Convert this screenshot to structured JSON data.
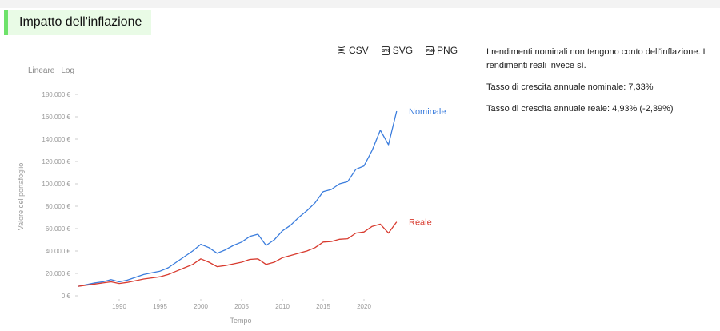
{
  "header": {
    "title": "Impatto dell'inflazione"
  },
  "exports": {
    "csv": "CSV",
    "svg": "SVG",
    "png": "PNG",
    "svg_icon": "SVG",
    "png_icon": "PNG"
  },
  "scale": {
    "linear": "Lineare",
    "log": "Log",
    "selected": "linear"
  },
  "side": {
    "description": "I rendimenti nominali non tengono conto dell'inflazione. I rendimenti reali invece sì.",
    "nominal_rate": "Tasso di crescita annuale nominale: 7,33%",
    "real_rate": "Tasso di crescita annuale reale: 4,93% (-2,39%)"
  },
  "chart_data": {
    "type": "line",
    "xlabel": "Tempo",
    "ylabel": "Valore del portafoglio",
    "xlim": [
      1985,
      2025
    ],
    "ylim": [
      0,
      180000
    ],
    "x_ticks": [
      1990,
      1995,
      2000,
      2005,
      2010,
      2015,
      2020
    ],
    "y_ticks": [
      0,
      20000,
      40000,
      60000,
      80000,
      100000,
      120000,
      140000,
      160000,
      180000
    ],
    "y_tick_labels": [
      "0 €",
      "20.000 €",
      "40.000 €",
      "60.000 €",
      "80.000 €",
      "100.000 €",
      "120.000 €",
      "140.000 €",
      "160.000 €",
      "180.000 €"
    ],
    "grid": false,
    "series": [
      {
        "name": "Nominale",
        "color": "#3b7ddd",
        "x": [
          1985,
          1986,
          1987,
          1988,
          1989,
          1990,
          1991,
          1992,
          1993,
          1994,
          1995,
          1996,
          1997,
          1998,
          1999,
          2000,
          2001,
          2002,
          2003,
          2004,
          2005,
          2006,
          2007,
          2008,
          2009,
          2010,
          2011,
          2012,
          2013,
          2014,
          2015,
          2016,
          2017,
          2018,
          2019,
          2020,
          2021,
          2022,
          2023,
          2024
        ],
        "y": [
          8500,
          10000,
          11500,
          12500,
          14500,
          12500,
          14000,
          16500,
          19000,
          20500,
          22000,
          25000,
          30000,
          35000,
          40000,
          46000,
          43000,
          38000,
          41000,
          45000,
          48000,
          53000,
          55000,
          45000,
          50000,
          58000,
          63000,
          70000,
          76000,
          83000,
          93000,
          95000,
          100000,
          102000,
          113000,
          116000,
          130000,
          148000,
          135000,
          165000
        ]
      },
      {
        "name": "Reale",
        "color": "#d83b2f",
        "x": [
          1985,
          1986,
          1987,
          1988,
          1989,
          1990,
          1991,
          1992,
          1993,
          1994,
          1995,
          1996,
          1997,
          1998,
          1999,
          2000,
          2001,
          2002,
          2003,
          2004,
          2005,
          2006,
          2007,
          2008,
          2009,
          2010,
          2011,
          2012,
          2013,
          2014,
          2015,
          2016,
          2017,
          2018,
          2019,
          2020,
          2021,
          2022,
          2023,
          2024
        ],
        "y": [
          8500,
          9500,
          10500,
          11500,
          12500,
          11000,
          12000,
          13500,
          15000,
          16000,
          17000,
          19000,
          22000,
          25000,
          28000,
          33000,
          30000,
          26000,
          27000,
          28500,
          30000,
          32500,
          33000,
          28000,
          30000,
          34000,
          36000,
          38000,
          40000,
          43000,
          48000,
          48500,
          50500,
          51000,
          56000,
          57000,
          62000,
          64000,
          56000,
          66000
        ]
      }
    ]
  }
}
